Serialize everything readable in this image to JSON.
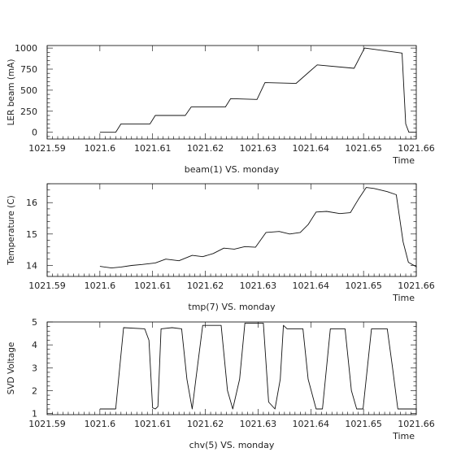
{
  "chart_data": [
    {
      "type": "line",
      "title": "",
      "xlabel": "beam(1) VS. monday",
      "x_axis_tag": "Time",
      "ylabel": "LER beam (mA)",
      "xlim": [
        1021.59,
        1021.66
      ],
      "ylim": [
        -80,
        1030
      ],
      "x_ticks": [
        1021.59,
        1021.6,
        1021.61,
        1021.62,
        1021.63,
        1021.64,
        1021.65,
        1021.66
      ],
      "x_tick_labels": [
        "1021.59",
        "1021.6",
        "1021.61",
        "1021.62",
        "1021.63",
        "1021.64",
        "1021.65",
        "1021.66"
      ],
      "y_ticks": [
        0,
        250,
        500,
        750,
        1000
      ],
      "y_tick_labels": [
        "0",
        "250",
        "500",
        "750",
        "1000"
      ],
      "series": [
        {
          "x": [
            1021.6,
            1021.603,
            1021.604,
            1021.6095,
            1021.6105,
            1021.6162,
            1021.6173,
            1021.6238,
            1021.6248,
            1021.6298,
            1021.6313,
            1021.6372,
            1021.6412,
            1021.6482,
            1021.6502,
            1021.6573,
            1021.658,
            1021.6586,
            1021.6601
          ],
          "y": [
            0,
            0,
            100,
            100,
            200,
            200,
            300,
            300,
            400,
            390,
            590,
            580,
            800,
            760,
            1000,
            940,
            100,
            0,
            0
          ]
        }
      ]
    },
    {
      "type": "line",
      "title": "",
      "xlabel": "tmp(7) VS. monday",
      "x_axis_tag": "Time",
      "ylabel": "Temperature (C)",
      "xlim": [
        1021.59,
        1021.66
      ],
      "ylim": [
        13.65,
        16.6
      ],
      "x_ticks": [
        1021.59,
        1021.6,
        1021.61,
        1021.62,
        1021.63,
        1021.64,
        1021.65,
        1021.66
      ],
      "x_tick_labels": [
        "1021.59",
        "1021.6",
        "1021.61",
        "1021.62",
        "1021.63",
        "1021.64",
        "1021.65",
        "1021.66"
      ],
      "y_ticks": [
        14,
        15,
        16
      ],
      "y_tick_labels": [
        "14",
        "15",
        "16"
      ],
      "series": [
        {
          "x": [
            1021.6,
            1021.6022,
            1021.604,
            1021.606,
            1021.608,
            1021.6105,
            1021.6125,
            1021.615,
            1021.6175,
            1021.6195,
            1021.6215,
            1021.6235,
            1021.6255,
            1021.6275,
            1021.6295,
            1021.6315,
            1021.634,
            1021.636,
            1021.638,
            1021.6395,
            1021.641,
            1021.643,
            1021.6455,
            1021.6475,
            1021.649,
            1021.6505,
            1021.652,
            1021.6545,
            1021.6562,
            1021.6575,
            1021.6585,
            1021.6601
          ],
          "y": [
            13.97,
            13.92,
            13.95,
            14.0,
            14.03,
            14.08,
            14.2,
            14.15,
            14.32,
            14.28,
            14.38,
            14.55,
            14.52,
            14.6,
            14.58,
            15.05,
            15.08,
            15.0,
            15.05,
            15.3,
            15.7,
            15.72,
            15.65,
            15.68,
            16.1,
            16.48,
            16.45,
            16.35,
            16.25,
            14.75,
            14.1,
            13.95
          ]
        }
      ]
    },
    {
      "type": "line",
      "title": "",
      "xlabel": "chv(5) VS. monday",
      "x_axis_tag": "Time",
      "ylabel": "SVD Voltage",
      "xlim": [
        1021.59,
        1021.66
      ],
      "ylim": [
        0.95,
        5.0
      ],
      "x_ticks": [
        1021.59,
        1021.6,
        1021.61,
        1021.62,
        1021.63,
        1021.64,
        1021.65,
        1021.66
      ],
      "x_tick_labels": [
        "1021.59",
        "1021.6",
        "1021.61",
        "1021.62",
        "1021.63",
        "1021.64",
        "1021.65",
        "1021.66"
      ],
      "y_ticks": [
        1,
        2,
        3,
        4,
        5
      ],
      "y_tick_labels": [
        "1",
        "2",
        "3",
        "4",
        "5"
      ],
      "series": [
        {
          "x": [
            1021.6,
            1021.603,
            1021.6045,
            1021.6085,
            1021.6093,
            1021.61,
            1021.6105,
            1021.611,
            1021.6116,
            1021.6137,
            1021.6155,
            1021.6165,
            1021.6175,
            1021.6182,
            1021.6195,
            1021.623,
            1021.6242,
            1021.6252,
            1021.6265,
            1021.6275,
            1021.6285,
            1021.631,
            1021.632,
            1021.6332,
            1021.6342,
            1021.6348,
            1021.6355,
            1021.6385,
            1021.6395,
            1021.641,
            1021.6422,
            1021.6437,
            1021.6465,
            1021.6477,
            1021.6487,
            1021.6499,
            1021.6515,
            1021.6545,
            1021.6555,
            1021.6565,
            1021.6601
          ],
          "y": [
            1.2,
            1.2,
            4.75,
            4.7,
            4.2,
            1.25,
            1.2,
            1.3,
            4.7,
            4.75,
            4.7,
            2.5,
            1.2,
            2.5,
            4.85,
            4.85,
            2.0,
            1.2,
            2.5,
            4.95,
            4.95,
            4.95,
            1.5,
            1.2,
            2.5,
            4.85,
            4.7,
            4.7,
            2.5,
            1.2,
            1.2,
            4.7,
            4.7,
            2.0,
            1.2,
            1.2,
            4.7,
            4.7,
            3.0,
            1.2,
            1.2
          ]
        }
      ]
    }
  ]
}
